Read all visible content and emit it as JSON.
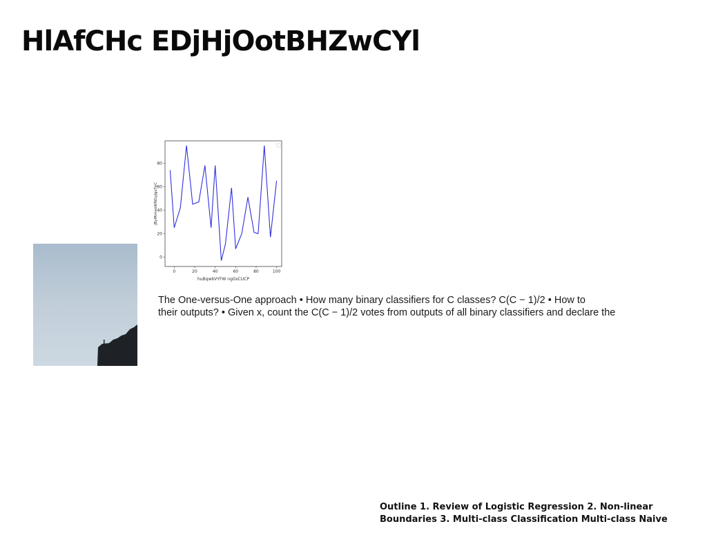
{
  "slide": {
    "title": "HlAfCHc EDjHjOotBHZwCYl",
    "body_line_1": "The One-versus-One approach • How many binary classifiers for C classes? C(C − 1)/2 • How to",
    "body_line_2": "their outputs? • Given x, count the C(C − 1)/2 votes from outputs of all binary classifiers and declare the",
    "footer_line_1": "Outline 1. Review of Logistic Regression 2. Non-linear",
    "footer_line_2": "Boundaries 3. Multi-class Classification Multi-class Naive"
  },
  "chart_data": {
    "type": "line",
    "xlabel": "huBqwbVYFW ngGsCUCP",
    "ylabel": "jByfRmeoWNGyJgsTpC",
    "x": [
      -4,
      0,
      6,
      12,
      18,
      24,
      30,
      36,
      40,
      46,
      50,
      56,
      60,
      66,
      72,
      78,
      82,
      88,
      94,
      100
    ],
    "y": [
      74,
      25,
      42,
      95,
      45,
      47,
      78,
      25,
      78,
      -3,
      11,
      59,
      7,
      20,
      51,
      21,
      20,
      95,
      17,
      65
    ],
    "xlim": [
      -9,
      105
    ],
    "ylim": [
      -8,
      99
    ],
    "xticks": [
      0,
      20,
      40,
      60,
      80,
      100
    ],
    "yticks": [
      0,
      20,
      40,
      60,
      80
    ],
    "grid": false,
    "line_color": "#2f2fdc"
  },
  "photo": {
    "sky_color": "#bccbd9",
    "rock_color": "#1d2125"
  }
}
